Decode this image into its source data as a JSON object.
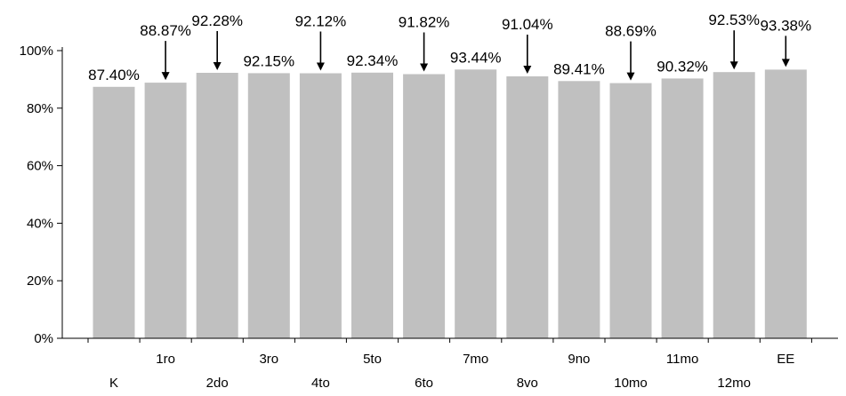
{
  "chart_data": {
    "type": "bar",
    "categories": [
      "K",
      "1ro",
      "2do",
      "3ro",
      "4to",
      "5to",
      "6to",
      "7mo",
      "8vo",
      "9no",
      "10mo",
      "11mo",
      "12mo",
      "EE"
    ],
    "values": [
      87.4,
      88.87,
      92.28,
      92.15,
      92.12,
      92.34,
      91.82,
      93.44,
      91.04,
      89.41,
      88.69,
      90.32,
      92.53,
      93.38
    ],
    "data_labels": [
      "87.40%",
      "88.87%",
      "92.28%",
      "92.15%",
      "92.12%",
      "92.34%",
      "91.82%",
      "93.44%",
      "91.04%",
      "89.41%",
      "88.69%",
      "90.32%",
      "92.53%",
      "93.38%"
    ],
    "arrow_labels": [
      false,
      true,
      true,
      false,
      true,
      false,
      true,
      false,
      true,
      false,
      true,
      false,
      true,
      true
    ],
    "y_ticks": [
      "0%",
      "20%",
      "40%",
      "60%",
      "80%",
      "100%"
    ],
    "y_tick_values": [
      0,
      20,
      40,
      60,
      80,
      100
    ],
    "ylim": [
      0,
      100
    ],
    "title": "",
    "xlabel": "",
    "ylabel": "",
    "grid": false,
    "legend": "none",
    "colors": {
      "bar": "#c0c0c0",
      "axis": "#000000",
      "text": "#000000"
    }
  }
}
